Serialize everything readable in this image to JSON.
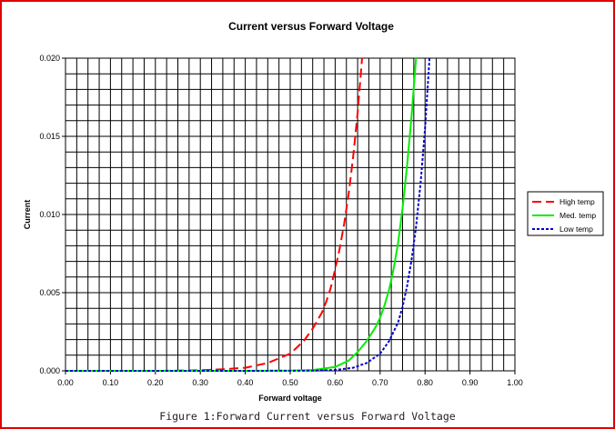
{
  "caption": "Figure 1:Forward Current versus Forward Voltage",
  "chart_data": {
    "type": "line",
    "title": "Current versus Forward Voltage",
    "xlabel": "Forward voltage",
    "ylabel": "Current",
    "xlim": [
      0.0,
      1.0
    ],
    "ylim": [
      0.0,
      0.02
    ],
    "x_ticks": [
      "0.00",
      "0.10",
      "0.20",
      "0.30",
      "0.40",
      "0.50",
      "0.60",
      "0.70",
      "0.80",
      "0.90",
      "1.00"
    ],
    "y_ticks": [
      "0.000",
      "0.005",
      "0.010",
      "0.015",
      "0.020"
    ],
    "grid": true,
    "legend_position": "right",
    "series": [
      {
        "name": "High temp",
        "color": "#ff0000",
        "dash": "long-dash",
        "x": [
          0.0,
          0.1,
          0.2,
          0.25,
          0.3,
          0.35,
          0.4,
          0.45,
          0.5,
          0.53,
          0.55,
          0.57,
          0.58,
          0.59,
          0.6,
          0.61,
          0.62,
          0.63,
          0.64,
          0.65,
          0.66
        ],
        "y": [
          0.0,
          0.0,
          0.0,
          1e-05,
          4e-05,
          0.0001,
          0.0002,
          0.0005,
          0.0011,
          0.0019,
          0.0027,
          0.0037,
          0.0044,
          0.0053,
          0.0065,
          0.0078,
          0.0094,
          0.0113,
          0.0137,
          0.0165,
          0.02
        ]
      },
      {
        "name": "Med. temp",
        "color": "#00ee00",
        "dash": "solid",
        "x": [
          0.0,
          0.2,
          0.4,
          0.5,
          0.55,
          0.6,
          0.63,
          0.65,
          0.67,
          0.69,
          0.7,
          0.71,
          0.72,
          0.73,
          0.74,
          0.75,
          0.76,
          0.77,
          0.78
        ],
        "y": [
          0.0,
          0.0,
          0.0,
          1e-05,
          5e-05,
          0.00025,
          0.00065,
          0.0012,
          0.0019,
          0.0028,
          0.0034,
          0.0042,
          0.0052,
          0.0065,
          0.0082,
          0.0104,
          0.0131,
          0.0163,
          0.02
        ]
      },
      {
        "name": "Low temp",
        "color": "#0000cc",
        "dash": "short-dash",
        "x": [
          0.0,
          0.2,
          0.4,
          0.55,
          0.6,
          0.64,
          0.67,
          0.7,
          0.72,
          0.74,
          0.75,
          0.76,
          0.77,
          0.78,
          0.79,
          0.8,
          0.81
        ],
        "y": [
          0.0,
          0.0,
          0.0,
          1e-05,
          5e-05,
          0.0002,
          0.0005,
          0.0011,
          0.0019,
          0.0031,
          0.0041,
          0.0054,
          0.0071,
          0.0092,
          0.012,
          0.0155,
          0.02
        ]
      }
    ]
  }
}
